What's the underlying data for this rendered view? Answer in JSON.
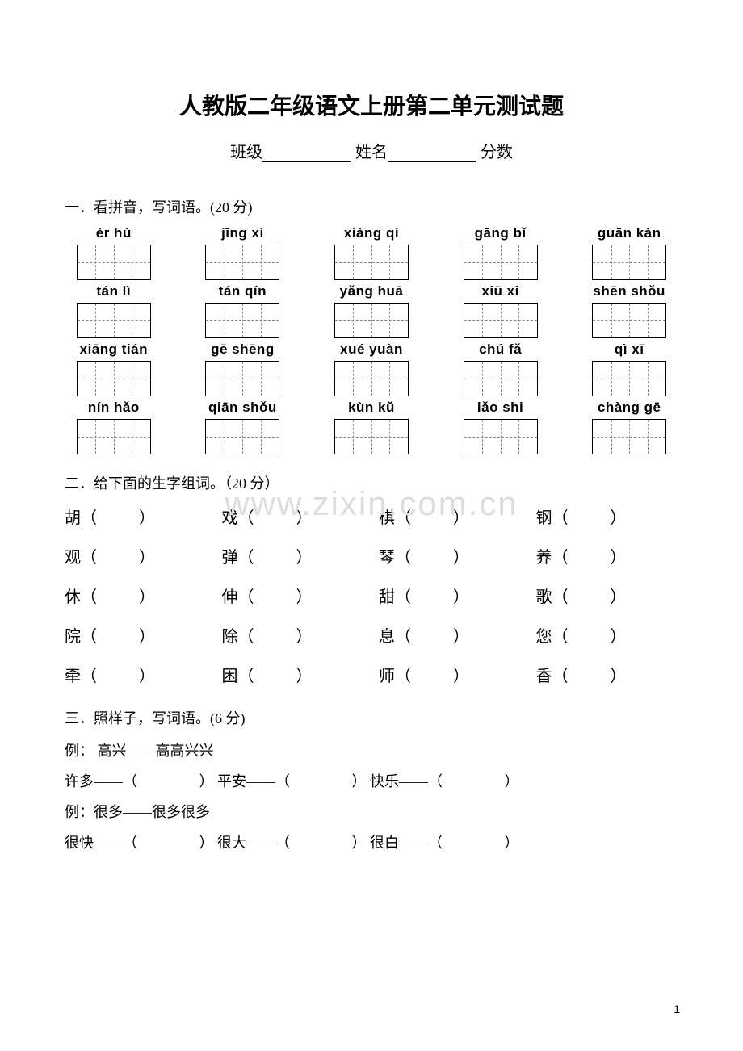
{
  "title": "人教版二年级语文上册第二单元测试题",
  "header": {
    "class_label": "班级",
    "name_label": "姓名",
    "score_label": "分数"
  },
  "section1": {
    "label": "一．看拼音，写词语。(20 分)",
    "items": [
      "èr  hú",
      "jīng xì",
      "xiàng qí",
      "gāng bǐ",
      "guān kàn",
      "tán lì",
      "tán  qín",
      "yǎng huā",
      "xiū xi",
      "shēn shǒu",
      "xiāng tián",
      "gē  shēng",
      "xué yuàn",
      "chú  fǎ",
      "qì  xī",
      "nín hǎo",
      "qiān  shǒu",
      "kùn  kǔ",
      "lǎo  shi",
      "chàng  gē"
    ]
  },
  "section2": {
    "label": "二．给下面的生字组词。（20 分）",
    "chars": [
      "胡",
      "戏",
      "棋",
      "钢",
      "观",
      "弹",
      "琴",
      "养",
      "休",
      "伸",
      "甜",
      "歌",
      "院",
      "除",
      "息",
      "您",
      "牵",
      "困",
      "师",
      "香"
    ]
  },
  "section3": {
    "label": "三．照样子，写词语。(6 分)",
    "ex1": "例： 高兴——高高兴兴",
    "row1": [
      "许多——（",
      "） 平安——（",
      "） 快乐——（",
      "）"
    ],
    "ex2": "例：很多——很多很多",
    "row2": [
      "很快——（",
      "） 很大——（",
      "） 很白——（",
      "）"
    ]
  },
  "watermark": "www.zixin.com.cn",
  "pagenum": "1"
}
